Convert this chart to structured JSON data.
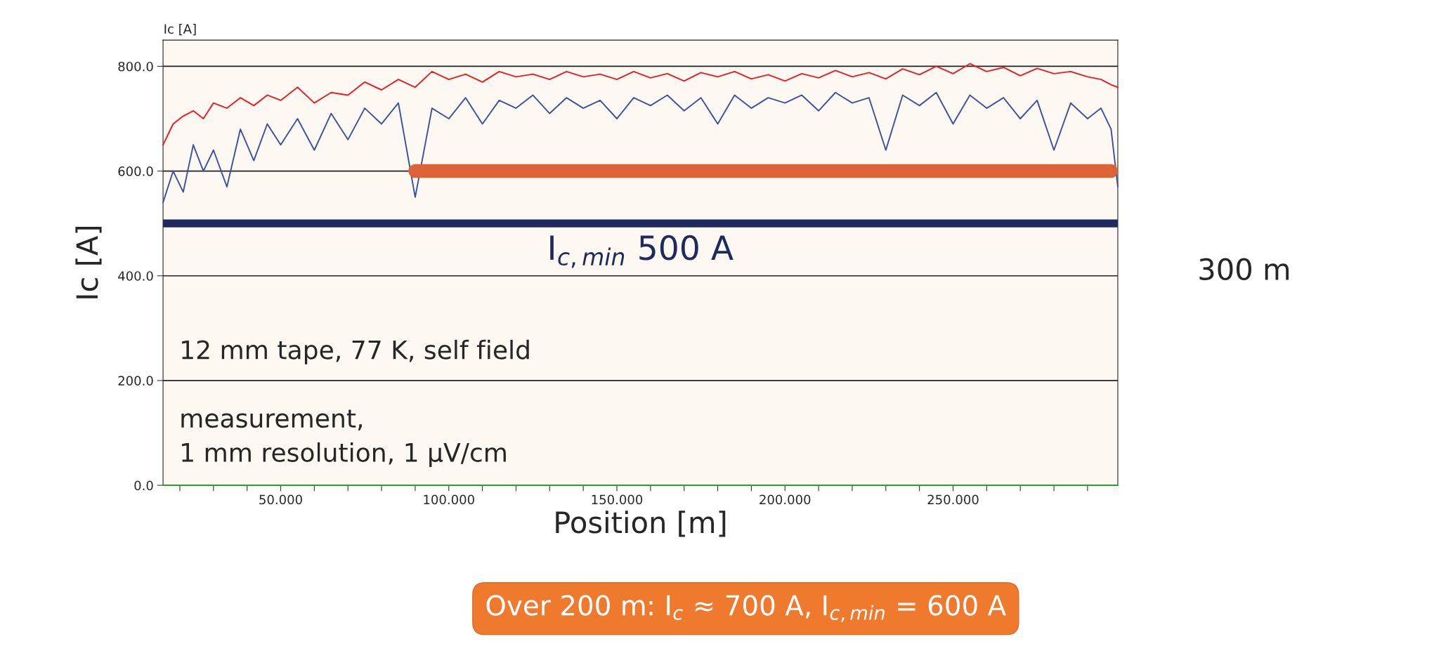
{
  "chart_data": {
    "type": "line",
    "xlabel": "Position [m]",
    "ylabel": "Ic [A]",
    "xlim": [
      15,
      299
    ],
    "ylim": [
      0,
      850
    ],
    "xticks": [
      {
        "value": 20,
        "label": null
      },
      {
        "value": 30,
        "label": null
      },
      {
        "value": 40,
        "label": null
      },
      {
        "value": 50,
        "label": "50.000"
      },
      {
        "value": 60,
        "label": null
      },
      {
        "value": 70,
        "label": null
      },
      {
        "value": 80,
        "label": null
      },
      {
        "value": 90,
        "label": null
      },
      {
        "value": 100,
        "label": "100.000"
      },
      {
        "value": 110,
        "label": null
      },
      {
        "value": 120,
        "label": null
      },
      {
        "value": 130,
        "label": null
      },
      {
        "value": 140,
        "label": null
      },
      {
        "value": 150,
        "label": "150.000"
      },
      {
        "value": 160,
        "label": null
      },
      {
        "value": 170,
        "label": null
      },
      {
        "value": 180,
        "label": null
      },
      {
        "value": 190,
        "label": null
      },
      {
        "value": 200,
        "label": "200.000"
      },
      {
        "value": 210,
        "label": null
      },
      {
        "value": 220,
        "label": null
      },
      {
        "value": 230,
        "label": null
      },
      {
        "value": 240,
        "label": null
      },
      {
        "value": 250,
        "label": "250.000"
      },
      {
        "value": 260,
        "label": null
      },
      {
        "value": 270,
        "label": null
      },
      {
        "value": 280,
        "label": null
      },
      {
        "value": 290,
        "label": null
      }
    ],
    "yticks": [
      {
        "value": 0,
        "label": "0.0"
      },
      {
        "value": 200,
        "label": "200.0"
      },
      {
        "value": 400,
        "label": "400.0"
      },
      {
        "value": 600,
        "label": "600.0"
      },
      {
        "value": 800,
        "label": "800.0"
      }
    ],
    "grid": "y",
    "legend": false,
    "series": [
      {
        "color": "#ed1c24",
        "x": [
          15,
          18,
          21,
          24,
          27,
          30,
          34,
          38,
          42,
          46,
          50,
          55,
          60,
          65,
          70,
          75,
          80,
          85,
          90,
          95,
          100,
          105,
          110,
          115,
          120,
          125,
          130,
          135,
          140,
          145,
          150,
          155,
          160,
          165,
          170,
          175,
          180,
          185,
          190,
          195,
          200,
          205,
          210,
          215,
          220,
          225,
          230,
          235,
          240,
          245,
          250,
          255,
          260,
          265,
          270,
          275,
          280,
          285,
          290,
          294,
          297,
          299
        ],
        "values": [
          650,
          690,
          705,
          715,
          700,
          730,
          720,
          740,
          725,
          745,
          735,
          760,
          730,
          750,
          745,
          770,
          755,
          775,
          760,
          790,
          775,
          785,
          770,
          790,
          780,
          785,
          775,
          790,
          780,
          785,
          775,
          790,
          778,
          786,
          772,
          788,
          780,
          790,
          776,
          784,
          772,
          786,
          778,
          792,
          780,
          788,
          776,
          795,
          784,
          800,
          786,
          805,
          790,
          798,
          782,
          796,
          786,
          790,
          780,
          775,
          765,
          760
        ]
      },
      {
        "color": "#3a53a4",
        "x": [
          15,
          18,
          21,
          24,
          27,
          30,
          34,
          38,
          42,
          46,
          50,
          55,
          60,
          65,
          70,
          75,
          80,
          85,
          90,
          95,
          100,
          105,
          110,
          115,
          120,
          125,
          130,
          135,
          140,
          145,
          150,
          155,
          160,
          165,
          170,
          175,
          180,
          185,
          190,
          195,
          200,
          205,
          210,
          215,
          220,
          225,
          230,
          235,
          240,
          245,
          250,
          255,
          260,
          265,
          270,
          275,
          280,
          285,
          290,
          294,
          297,
          299
        ],
        "values": [
          540,
          600,
          560,
          650,
          600,
          640,
          570,
          680,
          620,
          690,
          650,
          700,
          640,
          710,
          660,
          720,
          690,
          730,
          550,
          720,
          700,
          740,
          690,
          735,
          720,
          745,
          710,
          740,
          720,
          735,
          700,
          740,
          725,
          745,
          715,
          740,
          690,
          745,
          720,
          740,
          730,
          745,
          715,
          750,
          730,
          740,
          640,
          745,
          725,
          750,
          690,
          745,
          720,
          740,
          700,
          735,
          640,
          730,
          700,
          720,
          680,
          570
        ]
      },
      {
        "color": "#dd6236",
        "x": [
          90,
          297
        ],
        "values": [
          600,
          600
        ]
      },
      {
        "color": "#2ca02c",
        "x": [
          15,
          299
        ],
        "values": [
          0,
          0
        ]
      }
    ],
    "ref_lines": [
      {
        "axis": "y",
        "value": 500,
        "label": "I$_{c,min}$ 500 A",
        "color": "#1f2a5e"
      }
    ],
    "annotations": [
      "Ic [A]",
      "12 mm tape, 77 K, self field",
      "measurement,\n1 mm resolution, 1 µV/cm",
      "300 m",
      "Over 200 m: I$_{c}$ ≈ 700 A, I$_{c,min}$ = 600 A"
    ]
  }
}
